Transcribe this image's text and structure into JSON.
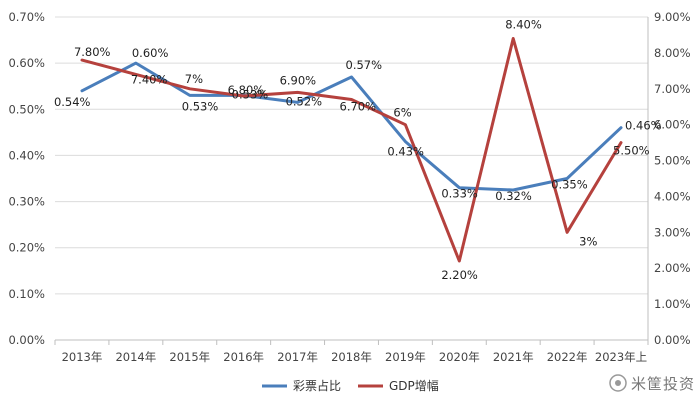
{
  "chart_data": {
    "type": "line",
    "categories": [
      "2013年",
      "2014年",
      "2015年",
      "2016年",
      "2017年",
      "2018年",
      "2019年",
      "2020年",
      "2021年",
      "2022年",
      "2023年上"
    ],
    "y_left": {
      "ticks": [
        "0.00%",
        "0.10%",
        "0.20%",
        "0.30%",
        "0.40%",
        "0.50%",
        "0.60%",
        "0.70%"
      ],
      "lim": [
        0,
        0.7
      ]
    },
    "y_right": {
      "ticks": [
        "0.00%",
        "1.00%",
        "2.00%",
        "3.00%",
        "4.00%",
        "5.00%",
        "6.00%",
        "7.00%",
        "8.00%",
        "9.00%"
      ],
      "lim": [
        0,
        9
      ]
    },
    "grid": true,
    "legend_position": "bottom",
    "series": [
      {
        "name": "彩票占比",
        "axis": "left",
        "color": "#4a7ebb",
        "values": [
          0.54,
          0.6,
          0.53,
          0.53,
          0.515,
          0.57,
          0.43,
          0.33,
          0.325,
          0.35,
          0.46
        ],
        "labels": [
          "0.54%",
          "0.60%",
          "0.53%",
          "0.53%",
          "0.52%",
          "0.57%",
          "0.43%",
          "0.33%",
          "0.32%",
          "0.35%",
          "0.46%"
        ]
      },
      {
        "name": "GDP增幅",
        "axis": "right",
        "color": "#b5413d",
        "values": [
          7.8,
          7.4,
          7.0,
          6.8,
          6.9,
          6.7,
          6.0,
          2.2,
          8.4,
          3.0,
          5.5
        ],
        "labels": [
          "7.80%",
          "7.40%",
          "7%",
          "6.80%",
          "6.90%",
          "6.70%",
          "6%",
          "2.20%",
          "8.40%",
          "3%",
          "5.50%"
        ]
      }
    ]
  },
  "watermark": "米筐投资"
}
